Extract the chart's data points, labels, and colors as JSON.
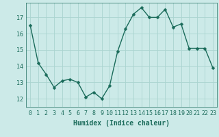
{
  "x": [
    0,
    1,
    2,
    3,
    4,
    5,
    6,
    7,
    8,
    9,
    10,
    11,
    12,
    13,
    14,
    15,
    16,
    17,
    18,
    19,
    20,
    21,
    22,
    23
  ],
  "y": [
    16.5,
    14.2,
    13.5,
    12.7,
    13.1,
    13.2,
    13.0,
    12.1,
    12.4,
    12.0,
    12.8,
    14.9,
    16.3,
    17.2,
    17.6,
    17.0,
    17.0,
    17.5,
    16.4,
    16.6,
    15.1,
    15.1,
    15.1,
    13.9
  ],
  "line_color": "#1a6b5a",
  "marker_color": "#1a6b5a",
  "bg_color": "#cceae8",
  "grid_color": "#aad4d0",
  "xlabel": "Humidex (Indice chaleur)",
  "xlim": [
    -0.5,
    23.5
  ],
  "ylim": [
    11.5,
    17.9
  ],
  "yticks": [
    12,
    13,
    14,
    15,
    16,
    17
  ],
  "xticks": [
    0,
    1,
    2,
    3,
    4,
    5,
    6,
    7,
    8,
    9,
    10,
    11,
    12,
    13,
    14,
    15,
    16,
    17,
    18,
    19,
    20,
    21,
    22,
    23
  ],
  "xtick_labels": [
    "0",
    "1",
    "2",
    "3",
    "4",
    "5",
    "6",
    "7",
    "8",
    "9",
    "10",
    "11",
    "12",
    "13",
    "14",
    "15",
    "16",
    "17",
    "18",
    "19",
    "20",
    "21",
    "22",
    "23"
  ],
  "marker_size": 2.5,
  "line_width": 1.0,
  "xlabel_fontsize": 7.0,
  "tick_fontsize": 6.0
}
